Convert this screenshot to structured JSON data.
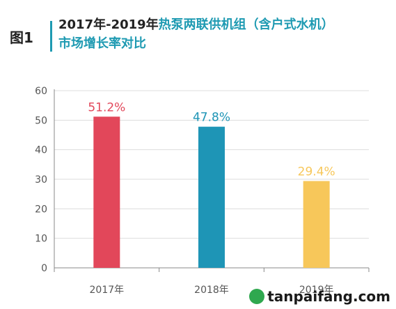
{
  "figure_label": "图1",
  "title": {
    "part1": "2017年-2019年",
    "part2": "热泵两联供机组（含户式水机）",
    "line2": "市场增长率对比"
  },
  "watermark": {
    "text": "tanpaifang.com"
  },
  "chart_data": {
    "type": "bar",
    "categories": [
      "2017年",
      "2018年",
      "2019年"
    ],
    "values": [
      51.2,
      47.8,
      29.4
    ],
    "value_labels": [
      "51.2%",
      "47.8%",
      "29.4%"
    ],
    "colors": [
      "#e2475a",
      "#1e95b6",
      "#f7c75a"
    ],
    "ylim": [
      0,
      60
    ],
    "yticks": [
      "0",
      "10",
      "20",
      "30",
      "40",
      "50",
      "60"
    ],
    "grid": true,
    "xlabel": "",
    "ylabel": ""
  }
}
